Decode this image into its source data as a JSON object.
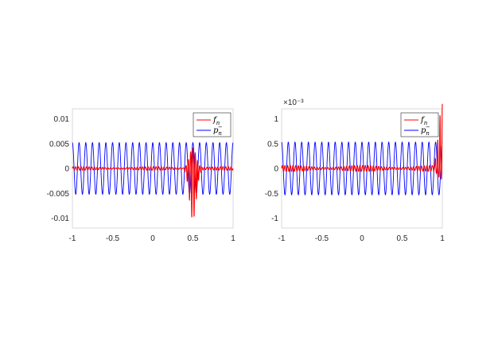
{
  "chart_data": [
    {
      "type": "line",
      "xlim": [
        -1,
        1
      ],
      "ylim": [
        -0.012,
        0.012
      ],
      "x_ticks": [
        -1,
        -0.5,
        0,
        0.5,
        1
      ],
      "x_tick_labels": [
        "-1",
        "-0.5",
        "0",
        "0.5",
        "1"
      ],
      "y_ticks": [
        -0.01,
        -0.005,
        0,
        0.005,
        0.01
      ],
      "y_tick_labels": [
        "-0.01",
        "-0.005",
        "0",
        "0.005",
        "0.01"
      ],
      "y_exponent_label": "",
      "grid": false,
      "legend_position": "top-right",
      "series": [
        {
          "name": "f_n",
          "color": "#ff0000",
          "description_of_shape": "small oscillation (~0.0003) across the domain with a sharp spike near x=0.5",
          "base_amplitude": 0.0003,
          "spike": {
            "x": 0.5,
            "min": -0.0105,
            "max": 0.0042
          }
        },
        {
          "name": "p_n^-",
          "color": "#0000ff",
          "amplitude": 0.0052,
          "oscillations": 24
        }
      ],
      "legend": [
        {
          "main": "f",
          "sub": "n",
          "sup": ""
        },
        {
          "main": "p",
          "sub": "n",
          "sup": "−"
        }
      ]
    },
    {
      "type": "line",
      "xlim": [
        -1,
        1
      ],
      "ylim": [
        -1.2,
        1.2
      ],
      "x_ticks": [
        -1,
        -0.5,
        0,
        0.5,
        1
      ],
      "x_tick_labels": [
        "-1",
        "-0.5",
        "0",
        "0.5",
        "1"
      ],
      "y_ticks": [
        -1,
        -0.5,
        0,
        0.5,
        1
      ],
      "y_tick_labels": [
        "-1",
        "-0.5",
        "0",
        "0.5",
        "1"
      ],
      "y_exponent_label": "×10⁻³",
      "grid": false,
      "legend_position": "top-right",
      "series": [
        {
          "name": "f_n",
          "color": "#ff0000",
          "base_amplitude": 0.05,
          "spike": {
            "x": 1,
            "min": -0.2,
            "max": 1.3
          }
        },
        {
          "name": "p_n^-",
          "color": "#0000ff",
          "amplitude": 0.53,
          "oscillations": 24
        }
      ],
      "legend": [
        {
          "main": "f",
          "sub": "n",
          "sup": ""
        },
        {
          "main": "p",
          "sub": "n",
          "sup": "−"
        }
      ]
    }
  ]
}
